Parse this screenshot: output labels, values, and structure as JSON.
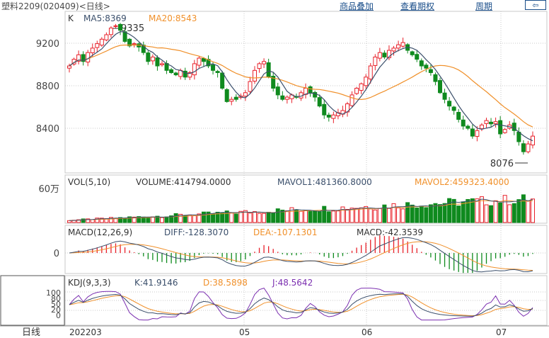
{
  "header": {
    "title": "塑料2209(020409)<日线>",
    "buttons": [
      "商品叠加",
      "查看期权",
      "周期"
    ],
    "back_label": "⇦"
  },
  "colors": {
    "up": "#e8212a",
    "down": "#0f8a1e",
    "ma5": "#3b4f6b",
    "ma20": "#f0902a",
    "kdj_k": "#3b4f6b",
    "kdj_d": "#f0902a",
    "kdj_j": "#7b2fb0",
    "grid": "#c9c9c9"
  },
  "price_panel": {
    "legend": {
      "k": "K",
      "ma5": "MA5:8369",
      "ma20": "MA20:8543"
    },
    "yticks": [
      9200,
      8800,
      8400
    ],
    "ylim": [
      8000,
      9450
    ],
    "max_label": "9335",
    "min_label": "8076"
  },
  "volume_panel": {
    "legend": {
      "vol": "VOL(5,10)",
      "volume": "VOLUME:414794.0000",
      "mavol1": "MAVOL1:481360.8000",
      "mavol2": "MAVOL2:459323.4000"
    },
    "ytick": "60万"
  },
  "macd_panel": {
    "legend": {
      "name": "MACD(12,26,9)",
      "diff": "DIFF:-128.3070",
      "dea": "DEA:-107.1301",
      "macd": "MACD:-42.3539"
    },
    "ytick": "0"
  },
  "kdj_panel": {
    "legend": {
      "name": "KDJ(9,3,3)",
      "k": "K:41.9146",
      "d": "D:38.5898",
      "j": "J:48.5642"
    },
    "yticks": [
      "100",
      "80",
      "50",
      "20",
      "0"
    ]
  },
  "x_axis": {
    "corner_label": "日线",
    "ticks": [
      "202203",
      "05",
      "06",
      "07"
    ]
  },
  "chart_data": {
    "type": "candlestick",
    "closes": [
      8960,
      9020,
      9060,
      9000,
      9080,
      9120,
      9160,
      9200,
      9240,
      9300,
      9320,
      9280,
      9180,
      9140,
      9160,
      9130,
      9080,
      9000,
      9040,
      8960,
      8980,
      8920,
      8900,
      8880,
      8920,
      8860,
      8900,
      8980,
      9030,
      9000,
      8960,
      8920,
      8900,
      8760,
      8640,
      8660,
      8660,
      8690,
      8720,
      8820,
      8920,
      8980,
      9000,
      8860,
      8760,
      8700,
      8660,
      8680,
      8700,
      8680,
      8720,
      8760,
      8720,
      8680,
      8600,
      8520,
      8500,
      8520,
      8540,
      8560,
      8620,
      8700,
      8760,
      8800,
      8860,
      8960,
      9040,
      9080,
      9040,
      9100,
      9120,
      9150,
      9170,
      9100,
      9060,
      9020,
      8960,
      8940,
      8900,
      8820,
      8720,
      8660,
      8600,
      8560,
      8480,
      8420,
      8400,
      8330,
      8380,
      8430,
      8470,
      8440,
      8460,
      8350,
      8390,
      8430,
      8380,
      8280,
      8190,
      8260,
      8330
    ],
    "volume_scale_max": 600000,
    "ma5_last": 8369,
    "ma20_last": 8543,
    "volume_last": 414794,
    "diff_last": -128.307,
    "dea_last": -107.1301,
    "macd_last": -42.3539,
    "k_last": 41.9146,
    "d_last": 38.5898,
    "j_last": 48.5642
  }
}
